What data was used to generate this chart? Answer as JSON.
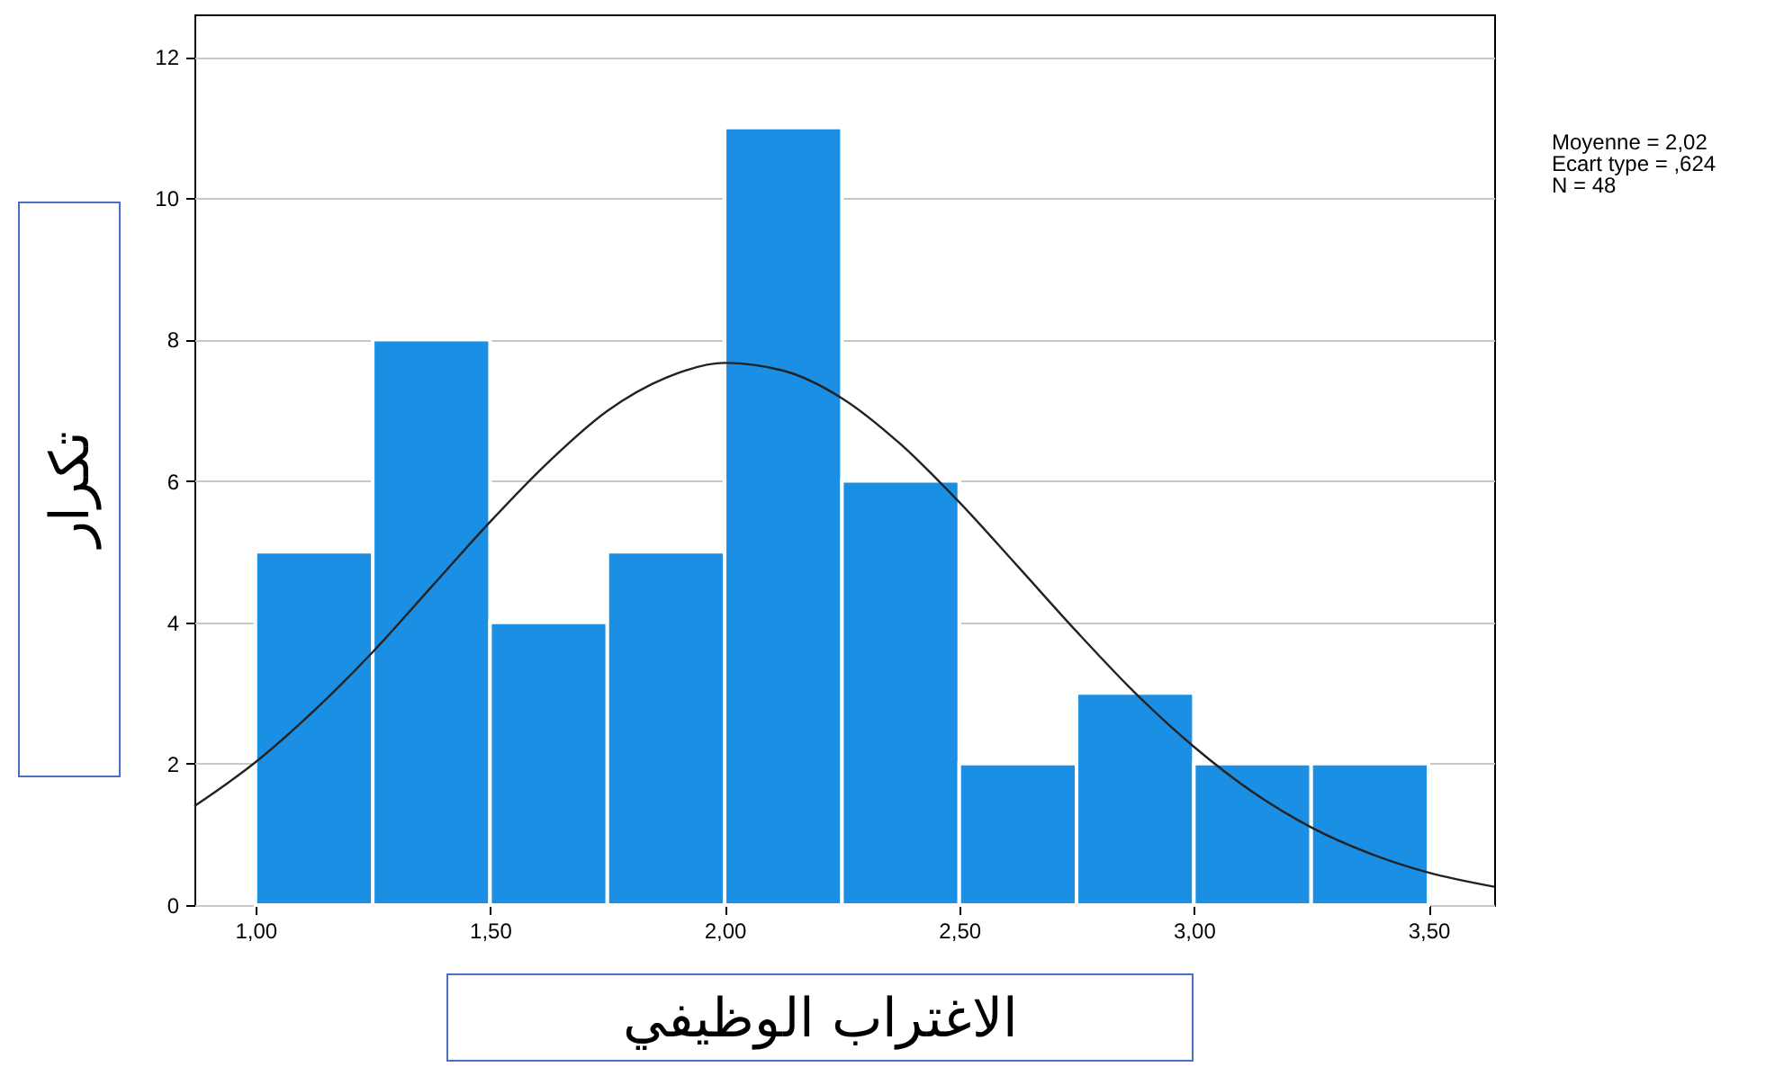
{
  "chart_data": {
    "type": "histogram",
    "xlabel": "الاغتراب الوظيفي",
    "ylabel": "تكرار",
    "annotations": [
      "Moyenne = 2,02",
      "Ecart type = ,624",
      "N = 48"
    ],
    "bins": [
      1.0,
      1.25,
      1.5,
      1.75,
      2.0,
      2.25,
      2.5,
      2.75,
      3.0,
      3.25,
      3.5
    ],
    "values": [
      5,
      8,
      4,
      5,
      11,
      6,
      2,
      3,
      2,
      2
    ],
    "color": "#1a8fe3",
    "series": [
      {
        "type": "line",
        "color": "#222222",
        "x": [
          0.87,
          1.0,
          1.125,
          1.25,
          1.375,
          1.5,
          1.625,
          1.75,
          1.875,
          2.0,
          2.125,
          2.25,
          2.375,
          2.5,
          2.625,
          2.75,
          2.875,
          3.0,
          3.125,
          3.25,
          3.375,
          3.5,
          3.64
        ],
        "values": [
          1.4,
          2.02,
          2.75,
          3.58,
          4.5,
          5.42,
          6.27,
          6.99,
          7.46,
          7.67,
          7.56,
          7.17,
          6.52,
          5.7,
          4.79,
          3.87,
          3.0,
          2.24,
          1.6,
          1.1,
          0.73,
          0.46,
          0.26
        ]
      }
    ],
    "marker": "none",
    "line_style": "solid",
    "grid": "y",
    "xlim": [
      0.87,
      3.64
    ],
    "ylim": [
      0,
      12.6
    ],
    "xticks": [
      {
        "value": 1.0,
        "label": "1,00"
      },
      {
        "value": 1.5,
        "label": "1,50"
      },
      {
        "value": 2.0,
        "label": "2,00"
      },
      {
        "value": 2.5,
        "label": "2,50"
      },
      {
        "value": 3.0,
        "label": "3,00"
      },
      {
        "value": 3.5,
        "label": "3,50"
      }
    ],
    "yticks": [
      0,
      2,
      4,
      6,
      8,
      10,
      12
    ]
  }
}
